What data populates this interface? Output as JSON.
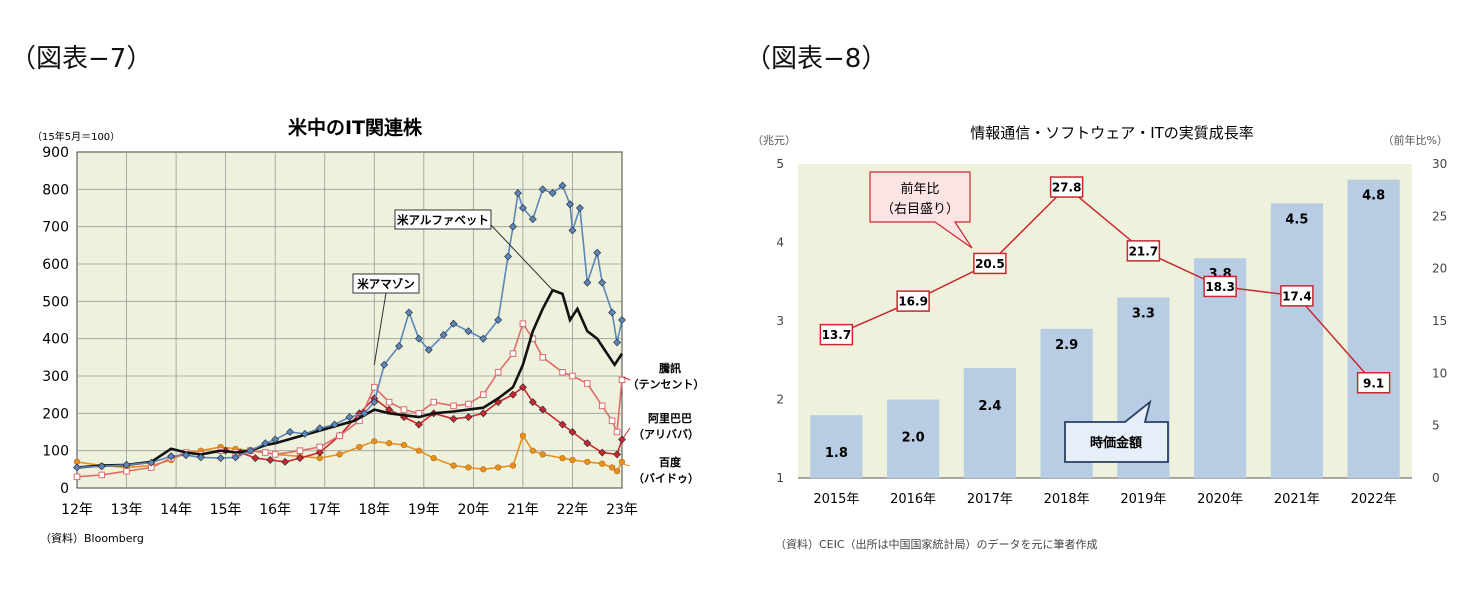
{
  "figures": {
    "fig7_label": "（図表−7）",
    "fig8_label": "（図表−8）"
  },
  "chart_data": [
    {
      "type": "line",
      "title": "米中のIT関連株",
      "ylabel": "（15年5月＝100）",
      "source": "（資料）Bloomberg",
      "ylim": [
        0,
        900
      ],
      "yticks": [
        "0",
        "100",
        "200",
        "300",
        "400",
        "500",
        "600",
        "700",
        "800",
        "900"
      ],
      "xlim": [
        2012.0,
        2023.0
      ],
      "xticks": [
        "12年",
        "13年",
        "14年",
        "15年",
        "16年",
        "17年",
        "18年",
        "19年",
        "20年",
        "21年",
        "22年",
        "23年"
      ],
      "grid": true,
      "background": "#eef2dd",
      "series": [
        {
          "name": "米アルファベット",
          "color": "#5a86b8",
          "marker": "diamond",
          "points": [
            [
              2012.0,
              55
            ],
            [
              2012.5,
              58
            ],
            [
              2013.0,
              62
            ],
            [
              2013.5,
              68
            ],
            [
              2013.9,
              85
            ],
            [
              2014.2,
              88
            ],
            [
              2014.5,
              82
            ],
            [
              2014.9,
              80
            ],
            [
              2015.2,
              82
            ],
            [
              2015.5,
              100
            ],
            [
              2015.8,
              120
            ],
            [
              2016.0,
              130
            ],
            [
              2016.3,
              150
            ],
            [
              2016.6,
              145
            ],
            [
              2016.9,
              160
            ],
            [
              2017.2,
              170
            ],
            [
              2017.5,
              190
            ],
            [
              2017.8,
              200
            ],
            [
              2018.0,
              230
            ],
            [
              2018.2,
              330
            ],
            [
              2018.5,
              380
            ],
            [
              2018.7,
              470
            ],
            [
              2018.9,
              400
            ],
            [
              2019.1,
              370
            ],
            [
              2019.4,
              410
            ],
            [
              2019.6,
              440
            ],
            [
              2019.9,
              420
            ],
            [
              2020.2,
              400
            ],
            [
              2020.5,
              450
            ],
            [
              2020.7,
              620
            ],
            [
              2020.8,
              700
            ],
            [
              2020.9,
              790
            ],
            [
              2021.0,
              750
            ],
            [
              2021.2,
              720
            ],
            [
              2021.4,
              800
            ],
            [
              2021.6,
              790
            ],
            [
              2021.8,
              810
            ],
            [
              2021.95,
              760
            ],
            [
              2022.0,
              690
            ],
            [
              2022.15,
              750
            ],
            [
              2022.3,
              550
            ],
            [
              2022.5,
              630
            ],
            [
              2022.6,
              550
            ],
            [
              2022.8,
              470
            ],
            [
              2022.9,
              390
            ],
            [
              2023.0,
              450
            ]
          ]
        },
        {
          "name": "米アマゾン",
          "color": "#111111",
          "marker": "none",
          "points": [
            [
              2012.0,
              55
            ],
            [
              2012.5,
              60
            ],
            [
              2013.0,
              62
            ],
            [
              2013.5,
              70
            ],
            [
              2013.9,
              105
            ],
            [
              2014.2,
              95
            ],
            [
              2014.5,
              90
            ],
            [
              2014.9,
              100
            ],
            [
              2015.2,
              95
            ],
            [
              2015.5,
              100
            ],
            [
              2015.8,
              115
            ],
            [
              2016.0,
              120
            ],
            [
              2016.4,
              135
            ],
            [
              2016.8,
              150
            ],
            [
              2017.2,
              165
            ],
            [
              2017.6,
              180
            ],
            [
              2018.0,
              210
            ],
            [
              2018.3,
              200
            ],
            [
              2018.6,
              195
            ],
            [
              2018.9,
              190
            ],
            [
              2019.2,
              200
            ],
            [
              2019.6,
              205
            ],
            [
              2019.9,
              210
            ],
            [
              2020.2,
              215
            ],
            [
              2020.5,
              240
            ],
            [
              2020.8,
              270
            ],
            [
              2021.0,
              330
            ],
            [
              2021.2,
              420
            ],
            [
              2021.4,
              480
            ],
            [
              2021.6,
              530
            ],
            [
              2021.8,
              520
            ],
            [
              2021.95,
              450
            ],
            [
              2022.1,
              480
            ],
            [
              2022.3,
              420
            ],
            [
              2022.5,
              400
            ],
            [
              2022.7,
              360
            ],
            [
              2022.85,
              330
            ],
            [
              2023.0,
              360
            ]
          ]
        },
        {
          "name": "騰訊（テンセント）",
          "color": "#e06b6b",
          "marker": "square-open",
          "points": [
            [
              2012.0,
              30
            ],
            [
              2012.5,
              35
            ],
            [
              2013.0,
              45
            ],
            [
              2013.5,
              55
            ],
            [
              2013.9,
              80
            ],
            [
              2014.2,
              95
            ],
            [
              2014.5,
              90
            ],
            [
              2014.9,
              100
            ],
            [
              2015.2,
              95
            ],
            [
              2015.5,
              100
            ],
            [
              2015.8,
              95
            ],
            [
              2016.0,
              90
            ],
            [
              2016.5,
              100
            ],
            [
              2016.9,
              110
            ],
            [
              2017.3,
              140
            ],
            [
              2017.7,
              180
            ],
            [
              2018.0,
              270
            ],
            [
              2018.3,
              230
            ],
            [
              2018.6,
              210
            ],
            [
              2018.9,
              200
            ],
            [
              2019.2,
              230
            ],
            [
              2019.6,
              220
            ],
            [
              2019.9,
              225
            ],
            [
              2020.2,
              250
            ],
            [
              2020.5,
              310
            ],
            [
              2020.8,
              360
            ],
            [
              2021.0,
              440
            ],
            [
              2021.2,
              400
            ],
            [
              2021.4,
              350
            ],
            [
              2021.8,
              310
            ],
            [
              2022.0,
              300
            ],
            [
              2022.3,
              280
            ],
            [
              2022.6,
              220
            ],
            [
              2022.8,
              180
            ],
            [
              2022.9,
              150
            ],
            [
              2023.0,
              290
            ]
          ]
        },
        {
          "name": "阿里巴巴（アリババ）",
          "color": "#c8282e",
          "marker": "diamond",
          "points": [
            [
              2015.0,
              100
            ],
            [
              2015.3,
              95
            ],
            [
              2015.6,
              80
            ],
            [
              2015.9,
              75
            ],
            [
              2016.2,
              70
            ],
            [
              2016.5,
              80
            ],
            [
              2016.9,
              95
            ],
            [
              2017.3,
              140
            ],
            [
              2017.7,
              200
            ],
            [
              2018.0,
              240
            ],
            [
              2018.3,
              210
            ],
            [
              2018.6,
              190
            ],
            [
              2018.9,
              170
            ],
            [
              2019.2,
              200
            ],
            [
              2019.6,
              185
            ],
            [
              2019.9,
              190
            ],
            [
              2020.2,
              200
            ],
            [
              2020.5,
              230
            ],
            [
              2020.8,
              250
            ],
            [
              2021.0,
              270
            ],
            [
              2021.2,
              230
            ],
            [
              2021.4,
              210
            ],
            [
              2021.8,
              170
            ],
            [
              2022.0,
              150
            ],
            [
              2022.3,
              120
            ],
            [
              2022.6,
              95
            ],
            [
              2022.9,
              90
            ],
            [
              2023.0,
              130
            ]
          ]
        },
        {
          "name": "百度（バイドゥ）",
          "color": "#e8901e",
          "marker": "circle",
          "points": [
            [
              2012.0,
              70
            ],
            [
              2012.5,
              60
            ],
            [
              2013.0,
              55
            ],
            [
              2013.5,
              60
            ],
            [
              2013.9,
              75
            ],
            [
              2014.2,
              95
            ],
            [
              2014.5,
              100
            ],
            [
              2014.9,
              110
            ],
            [
              2015.2,
              105
            ],
            [
              2015.5,
              100
            ],
            [
              2015.8,
              95
            ],
            [
              2016.0,
              90
            ],
            [
              2016.5,
              85
            ],
            [
              2016.9,
              80
            ],
            [
              2017.3,
              90
            ],
            [
              2017.7,
              110
            ],
            [
              2018.0,
              125
            ],
            [
              2018.3,
              120
            ],
            [
              2018.6,
              115
            ],
            [
              2018.9,
              100
            ],
            [
              2019.2,
              80
            ],
            [
              2019.6,
              60
            ],
            [
              2019.9,
              55
            ],
            [
              2020.2,
              50
            ],
            [
              2020.5,
              55
            ],
            [
              2020.8,
              60
            ],
            [
              2021.0,
              140
            ],
            [
              2021.2,
              100
            ],
            [
              2021.4,
              90
            ],
            [
              2021.8,
              80
            ],
            [
              2022.0,
              75
            ],
            [
              2022.3,
              70
            ],
            [
              2022.6,
              65
            ],
            [
              2022.8,
              55
            ],
            [
              2022.9,
              45
            ],
            [
              2023.0,
              70
            ]
          ]
        }
      ],
      "annotations": {
        "alphabet": "米アルファベット",
        "amazon": "米アマゾン",
        "tencent1": "騰訊",
        "tencent2": "（テンセント）",
        "alibaba1": "阿里巴巴",
        "alibaba2": "（アリババ）",
        "baidu1": "百度",
        "baidu2": "（バイドゥ）"
      }
    },
    {
      "type": "bar",
      "title": "情報通信・ソフトウェア・ITの実質成長率",
      "ylabel_left": "（兆元）",
      "ylabel_right": "（前年比%）",
      "source": "（資料）CEIC（出所は中国国家統計局）のデータを元に筆者作成",
      "categories": [
        "2015年",
        "2016年",
        "2017年",
        "2018年",
        "2019年",
        "2020年",
        "2021年",
        "2022年"
      ],
      "bar_values": [
        1.8,
        2.0,
        2.4,
        2.9,
        3.3,
        3.8,
        4.5,
        4.8
      ],
      "bar_labels": [
        "1.8",
        "2.0",
        "2.4",
        "2.9",
        "3.3",
        "3.8",
        "4.5",
        "4.8"
      ],
      "line_values": [
        13.7,
        16.9,
        20.5,
        27.8,
        21.7,
        18.3,
        17.4,
        9.1
      ],
      "line_labels": [
        "13.7",
        "16.9",
        "20.5",
        "27.8",
        "21.7",
        "18.3",
        "17.4",
        "9.1"
      ],
      "ylim_left": [
        1,
        5
      ],
      "yticks_left": [
        "1",
        "2",
        "3",
        "4",
        "5"
      ],
      "ylim_right": [
        0,
        30
      ],
      "yticks_right": [
        "0",
        "5",
        "10",
        "15",
        "20",
        "25",
        "30"
      ],
      "bar_color": "#b8cce4",
      "line_color": "#c8282e",
      "background": "#eef2dd",
      "callouts": {
        "line1": "前年比",
        "line2": "（右目盛り）",
        "bar": "時価金額"
      }
    }
  ]
}
